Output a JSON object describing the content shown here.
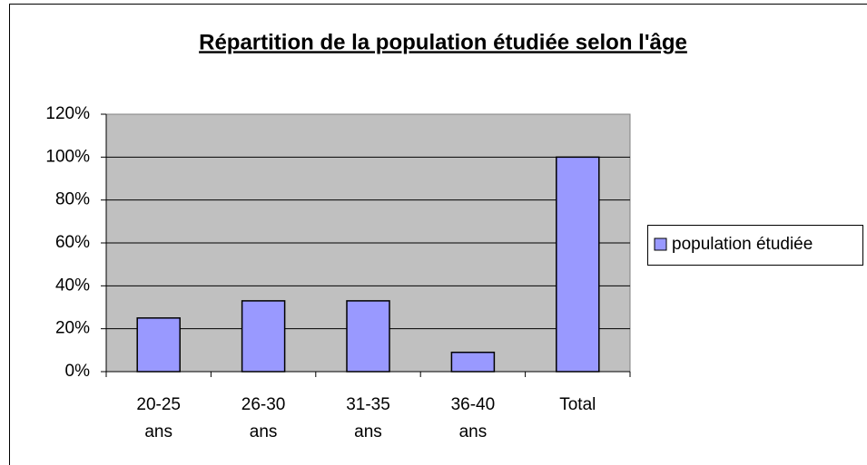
{
  "chart_data": {
    "type": "bar",
    "title": "Répartition  de la population étudiée selon l'âge",
    "categories": [
      "20-25 ans",
      "26-30 ans",
      "31-35 ans",
      "36-40 ans",
      "Total"
    ],
    "series": [
      {
        "name": "population étudiée",
        "color": "#9999ff",
        "values": [
          25,
          33,
          33,
          9,
          100
        ]
      }
    ],
    "ylim": [
      0,
      120
    ],
    "yticks": [
      {
        "value": 0,
        "label": "0%"
      },
      {
        "value": 20,
        "label": "20%"
      },
      {
        "value": 40,
        "label": "40%"
      },
      {
        "value": 60,
        "label": "60%"
      },
      {
        "value": 80,
        "label": "80%"
      },
      {
        "value": 100,
        "label": "100%"
      },
      {
        "value": 120,
        "label": "120%"
      }
    ],
    "grid": true,
    "legend": "right"
  }
}
